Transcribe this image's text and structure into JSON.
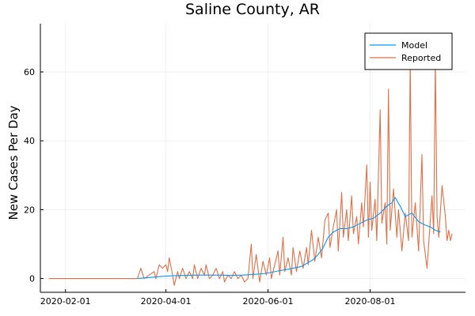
{
  "chart_data": {
    "type": "line",
    "title": "Saline County, AR",
    "xlabel": "",
    "ylabel": "New Cases Per Day",
    "x_axis": {
      "type": "date",
      "range": [
        "2020-01-17",
        "2020-09-27"
      ],
      "ticks": [
        "2020-02-01",
        "2020-04-01",
        "2020-06-01",
        "2020-08-01"
      ]
    },
    "y_axis": {
      "range": [
        -4,
        74
      ],
      "ticks": [
        0,
        20,
        40,
        60
      ]
    },
    "grid": true,
    "legend": {
      "position": "top-right"
    },
    "colors": {
      "Model": "#009AFA",
      "Reported": "#E26F46"
    },
    "series": [
      {
        "name": "Model",
        "points": [
          [
            "2020-03-15",
            0
          ],
          [
            "2020-03-22",
            0.3
          ],
          [
            "2020-03-29",
            0.6
          ],
          [
            "2020-04-05",
            0.8
          ],
          [
            "2020-04-12",
            0.9
          ],
          [
            "2020-04-19",
            1.0
          ],
          [
            "2020-04-26",
            1.0
          ],
          [
            "2020-05-03",
            1.0
          ],
          [
            "2020-05-10",
            0.9
          ],
          [
            "2020-05-17",
            1.0
          ],
          [
            "2020-05-24",
            1.2
          ],
          [
            "2020-05-31",
            1.5
          ],
          [
            "2020-06-07",
            2.2
          ],
          [
            "2020-06-14",
            2.8
          ],
          [
            "2020-06-21",
            3.5
          ],
          [
            "2020-06-28",
            5.5
          ],
          [
            "2020-07-01",
            7.0
          ],
          [
            "2020-07-04",
            9.0
          ],
          [
            "2020-07-07",
            12.0
          ],
          [
            "2020-07-10",
            13.5
          ],
          [
            "2020-07-14",
            14.5
          ],
          [
            "2020-07-18",
            14.5
          ],
          [
            "2020-07-22",
            15.0
          ],
          [
            "2020-07-26",
            16.0
          ],
          [
            "2020-07-30",
            17.0
          ],
          [
            "2020-08-03",
            17.5
          ],
          [
            "2020-08-07",
            19.0
          ],
          [
            "2020-08-11",
            21.0
          ],
          [
            "2020-08-14",
            22.0
          ],
          [
            "2020-08-16",
            23.5
          ],
          [
            "2020-08-19",
            21.0
          ],
          [
            "2020-08-22",
            18.0
          ],
          [
            "2020-08-26",
            19.0
          ],
          [
            "2020-08-30",
            16.5
          ],
          [
            "2020-09-03",
            15.5
          ],
          [
            "2020-09-06",
            15.0
          ],
          [
            "2020-09-09",
            14.0
          ],
          [
            "2020-09-12",
            13.5
          ]
        ]
      },
      {
        "name": "Reported",
        "points": [
          [
            "2020-01-22",
            0
          ],
          [
            "2020-02-15",
            0
          ],
          [
            "2020-03-11",
            0
          ],
          [
            "2020-03-15",
            0
          ],
          [
            "2020-03-17",
            3
          ],
          [
            "2020-03-19",
            0
          ],
          [
            "2020-03-22",
            1
          ],
          [
            "2020-03-25",
            2
          ],
          [
            "2020-03-26",
            0
          ],
          [
            "2020-03-28",
            4
          ],
          [
            "2020-03-30",
            3
          ],
          [
            "2020-04-01",
            4
          ],
          [
            "2020-04-02",
            2
          ],
          [
            "2020-04-03",
            6
          ],
          [
            "2020-04-05",
            1
          ],
          [
            "2020-04-06",
            -2
          ],
          [
            "2020-04-08",
            2
          ],
          [
            "2020-04-09",
            0
          ],
          [
            "2020-04-11",
            3
          ],
          [
            "2020-04-13",
            0
          ],
          [
            "2020-04-15",
            2
          ],
          [
            "2020-04-17",
            0
          ],
          [
            "2020-04-18",
            4
          ],
          [
            "2020-04-20",
            0
          ],
          [
            "2020-04-22",
            3
          ],
          [
            "2020-04-24",
            1
          ],
          [
            "2020-04-25",
            4
          ],
          [
            "2020-04-27",
            0
          ],
          [
            "2020-04-29",
            1
          ],
          [
            "2020-05-01",
            3
          ],
          [
            "2020-05-03",
            0
          ],
          [
            "2020-05-05",
            2
          ],
          [
            "2020-05-06",
            -1
          ],
          [
            "2020-05-08",
            1
          ],
          [
            "2020-05-10",
            0
          ],
          [
            "2020-05-12",
            2
          ],
          [
            "2020-05-14",
            0
          ],
          [
            "2020-05-16",
            1
          ],
          [
            "2020-05-18",
            -1
          ],
          [
            "2020-05-20",
            0
          ],
          [
            "2020-05-22",
            10
          ],
          [
            "2020-05-23",
            0
          ],
          [
            "2020-05-25",
            7
          ],
          [
            "2020-05-27",
            -1
          ],
          [
            "2020-05-29",
            5
          ],
          [
            "2020-05-31",
            1
          ],
          [
            "2020-06-02",
            6
          ],
          [
            "2020-06-03",
            0
          ],
          [
            "2020-06-05",
            4
          ],
          [
            "2020-06-07",
            8
          ],
          [
            "2020-06-08",
            1
          ],
          [
            "2020-06-10",
            12
          ],
          [
            "2020-06-11",
            2
          ],
          [
            "2020-06-13",
            6
          ],
          [
            "2020-06-15",
            1
          ],
          [
            "2020-06-16",
            9
          ],
          [
            "2020-06-18",
            2
          ],
          [
            "2020-06-20",
            8
          ],
          [
            "2020-06-22",
            3
          ],
          [
            "2020-06-24",
            9
          ],
          [
            "2020-06-25",
            4
          ],
          [
            "2020-06-27",
            14
          ],
          [
            "2020-06-29",
            5
          ],
          [
            "2020-07-01",
            12
          ],
          [
            "2020-07-03",
            6
          ],
          [
            "2020-07-05",
            17
          ],
          [
            "2020-07-07",
            19
          ],
          [
            "2020-07-08",
            9
          ],
          [
            "2020-07-10",
            15
          ],
          [
            "2020-07-12",
            20
          ],
          [
            "2020-07-13",
            8
          ],
          [
            "2020-07-15",
            25
          ],
          [
            "2020-07-16",
            12
          ],
          [
            "2020-07-18",
            20
          ],
          [
            "2020-07-19",
            11
          ],
          [
            "2020-07-21",
            24
          ],
          [
            "2020-07-22",
            13
          ],
          [
            "2020-07-24",
            18
          ],
          [
            "2020-07-25",
            10
          ],
          [
            "2020-07-27",
            22
          ],
          [
            "2020-07-28",
            15
          ],
          [
            "2020-07-30",
            33
          ],
          [
            "2020-07-31",
            12
          ],
          [
            "2020-08-01",
            28
          ],
          [
            "2020-08-02",
            14
          ],
          [
            "2020-08-04",
            23
          ],
          [
            "2020-08-05",
            11
          ],
          [
            "2020-08-07",
            49
          ],
          [
            "2020-08-08",
            16
          ],
          [
            "2020-08-10",
            22
          ],
          [
            "2020-08-11",
            10
          ],
          [
            "2020-08-12",
            55
          ],
          [
            "2020-08-13",
            14
          ],
          [
            "2020-08-15",
            26
          ],
          [
            "2020-08-17",
            12
          ],
          [
            "2020-08-18",
            20
          ],
          [
            "2020-08-20",
            8
          ],
          [
            "2020-08-22",
            19
          ],
          [
            "2020-08-24",
            11
          ],
          [
            "2020-08-25",
            63
          ],
          [
            "2020-08-26",
            12
          ],
          [
            "2020-08-28",
            22
          ],
          [
            "2020-08-30",
            8
          ],
          [
            "2020-09-01",
            36
          ],
          [
            "2020-09-02",
            11
          ],
          [
            "2020-09-04",
            3
          ],
          [
            "2020-09-05",
            10
          ],
          [
            "2020-09-07",
            24
          ],
          [
            "2020-09-08",
            13
          ],
          [
            "2020-09-09",
            63
          ],
          [
            "2020-09-10",
            18
          ],
          [
            "2020-09-11",
            12
          ],
          [
            "2020-09-13",
            27
          ],
          [
            "2020-09-15",
            18
          ],
          [
            "2020-09-16",
            11
          ],
          [
            "2020-09-17",
            14
          ],
          [
            "2020-09-18",
            11
          ],
          [
            "2020-09-19",
            13
          ]
        ]
      }
    ]
  }
}
